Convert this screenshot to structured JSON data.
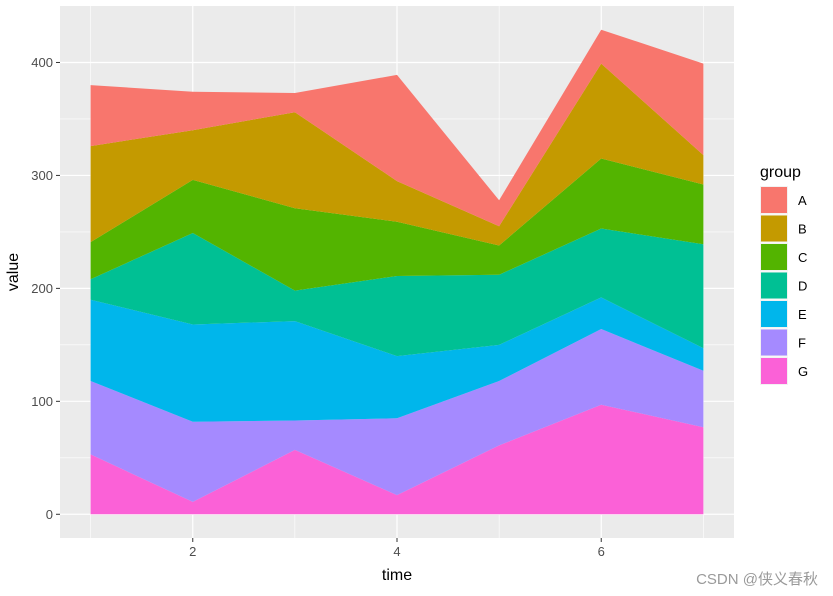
{
  "chart_data": {
    "type": "area",
    "stacked": true,
    "xlabel": "time",
    "ylabel": "value",
    "x": [
      1,
      2,
      3,
      4,
      5,
      6,
      7
    ],
    "xlim": [
      0.7,
      7.3
    ],
    "ylim": [
      -21,
      450
    ],
    "x_ticks": [
      2,
      4,
      6
    ],
    "y_ticks": [
      0,
      100,
      200,
      300,
      400
    ],
    "grid": true,
    "legend": {
      "title": "group",
      "position": "right"
    },
    "series": [
      {
        "name": "A",
        "color": "#F8766D",
        "values": [
          54,
          34,
          17,
          94,
          23,
          30,
          81
        ]
      },
      {
        "name": "B",
        "color": "#C49A00",
        "values": [
          85,
          44,
          85,
          36,
          17,
          84,
          26
        ]
      },
      {
        "name": "C",
        "color": "#53B400",
        "values": [
          33,
          47,
          73,
          48,
          26,
          62,
          53
        ]
      },
      {
        "name": "D",
        "color": "#00C094",
        "values": [
          18,
          81,
          27,
          71,
          62,
          61,
          92
        ]
      },
      {
        "name": "E",
        "color": "#00B6EB",
        "values": [
          72,
          86,
          88,
          55,
          32,
          28,
          20
        ]
      },
      {
        "name": "F",
        "color": "#A58AFF",
        "values": [
          65,
          71,
          26,
          68,
          57,
          67,
          50
        ]
      },
      {
        "name": "G",
        "color": "#FB61D7",
        "values": [
          53,
          11,
          57,
          17,
          61,
          97,
          77
        ]
      }
    ]
  },
  "watermark": "CSDN @侠义春秋"
}
